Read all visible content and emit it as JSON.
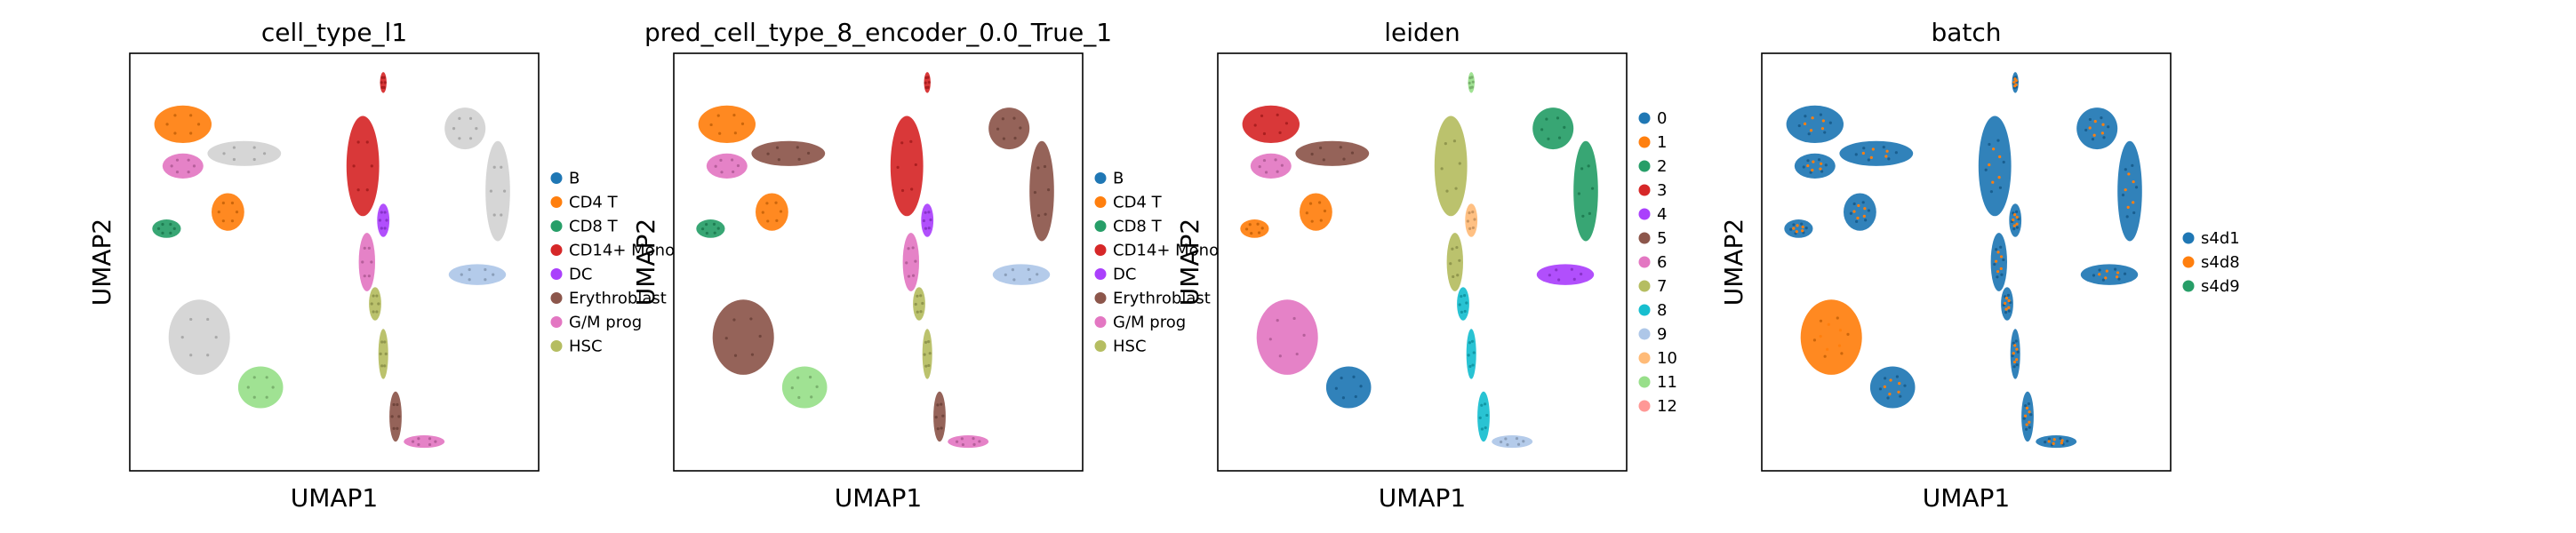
{
  "chart_data": [
    {
      "type": "scatter",
      "title": "cell_type_l1",
      "xlabel": "UMAP1",
      "ylabel": "UMAP2",
      "legend_position": "right",
      "categories": [
        {
          "label": "B",
          "color": "#1f77b4"
        },
        {
          "label": "CD4 T",
          "color": "#ff7f0e"
        },
        {
          "label": "CD8 T",
          "color": "#279e68"
        },
        {
          "label": "CD14+ Mono",
          "color": "#d62728"
        },
        {
          "label": "DC",
          "color": "#aa40fc"
        },
        {
          "label": "Erythroblast",
          "color": "#8c564b"
        },
        {
          "label": "G/M prog",
          "color": "#e377c2"
        },
        {
          "label": "HSC",
          "color": "#b5bd61"
        }
      ]
    },
    {
      "type": "scatter",
      "title": "pred_cell_type_8_encoder_0.0_True_1",
      "xlabel": "UMAP1",
      "ylabel": "UMAP2",
      "legend_position": "right",
      "categories": [
        {
          "label": "B",
          "color": "#1f77b4"
        },
        {
          "label": "CD4 T",
          "color": "#ff7f0e"
        },
        {
          "label": "CD8 T",
          "color": "#279e68"
        },
        {
          "label": "CD14+ Mono",
          "color": "#d62728"
        },
        {
          "label": "DC",
          "color": "#aa40fc"
        },
        {
          "label": "Erythroblast",
          "color": "#8c564b"
        },
        {
          "label": "G/M prog",
          "color": "#e377c2"
        },
        {
          "label": "HSC",
          "color": "#b5bd61"
        }
      ]
    },
    {
      "type": "scatter",
      "title": "leiden",
      "xlabel": "UMAP1",
      "ylabel": "UMAP2",
      "legend_position": "right",
      "categories": [
        {
          "label": "0",
          "color": "#1f77b4"
        },
        {
          "label": "1",
          "color": "#ff7f0e"
        },
        {
          "label": "2",
          "color": "#279e68"
        },
        {
          "label": "3",
          "color": "#d62728"
        },
        {
          "label": "4",
          "color": "#aa40fc"
        },
        {
          "label": "5",
          "color": "#8c564b"
        },
        {
          "label": "6",
          "color": "#e377c2"
        },
        {
          "label": "7",
          "color": "#b5bd61"
        },
        {
          "label": "8",
          "color": "#17becf"
        },
        {
          "label": "9",
          "color": "#aec7e8"
        },
        {
          "label": "10",
          "color": "#ffbb78"
        },
        {
          "label": "11",
          "color": "#98df8a"
        },
        {
          "label": "12",
          "color": "#ff9896"
        }
      ]
    },
    {
      "type": "scatter",
      "title": "batch",
      "xlabel": "UMAP1",
      "ylabel": "UMAP2",
      "legend_position": "right",
      "categories": [
        {
          "label": "s4d1",
          "color": "#1f77b4"
        },
        {
          "label": "s4d8",
          "color": "#ff7f0e"
        },
        {
          "label": "s4d9",
          "color": "#279e68"
        }
      ]
    }
  ]
}
